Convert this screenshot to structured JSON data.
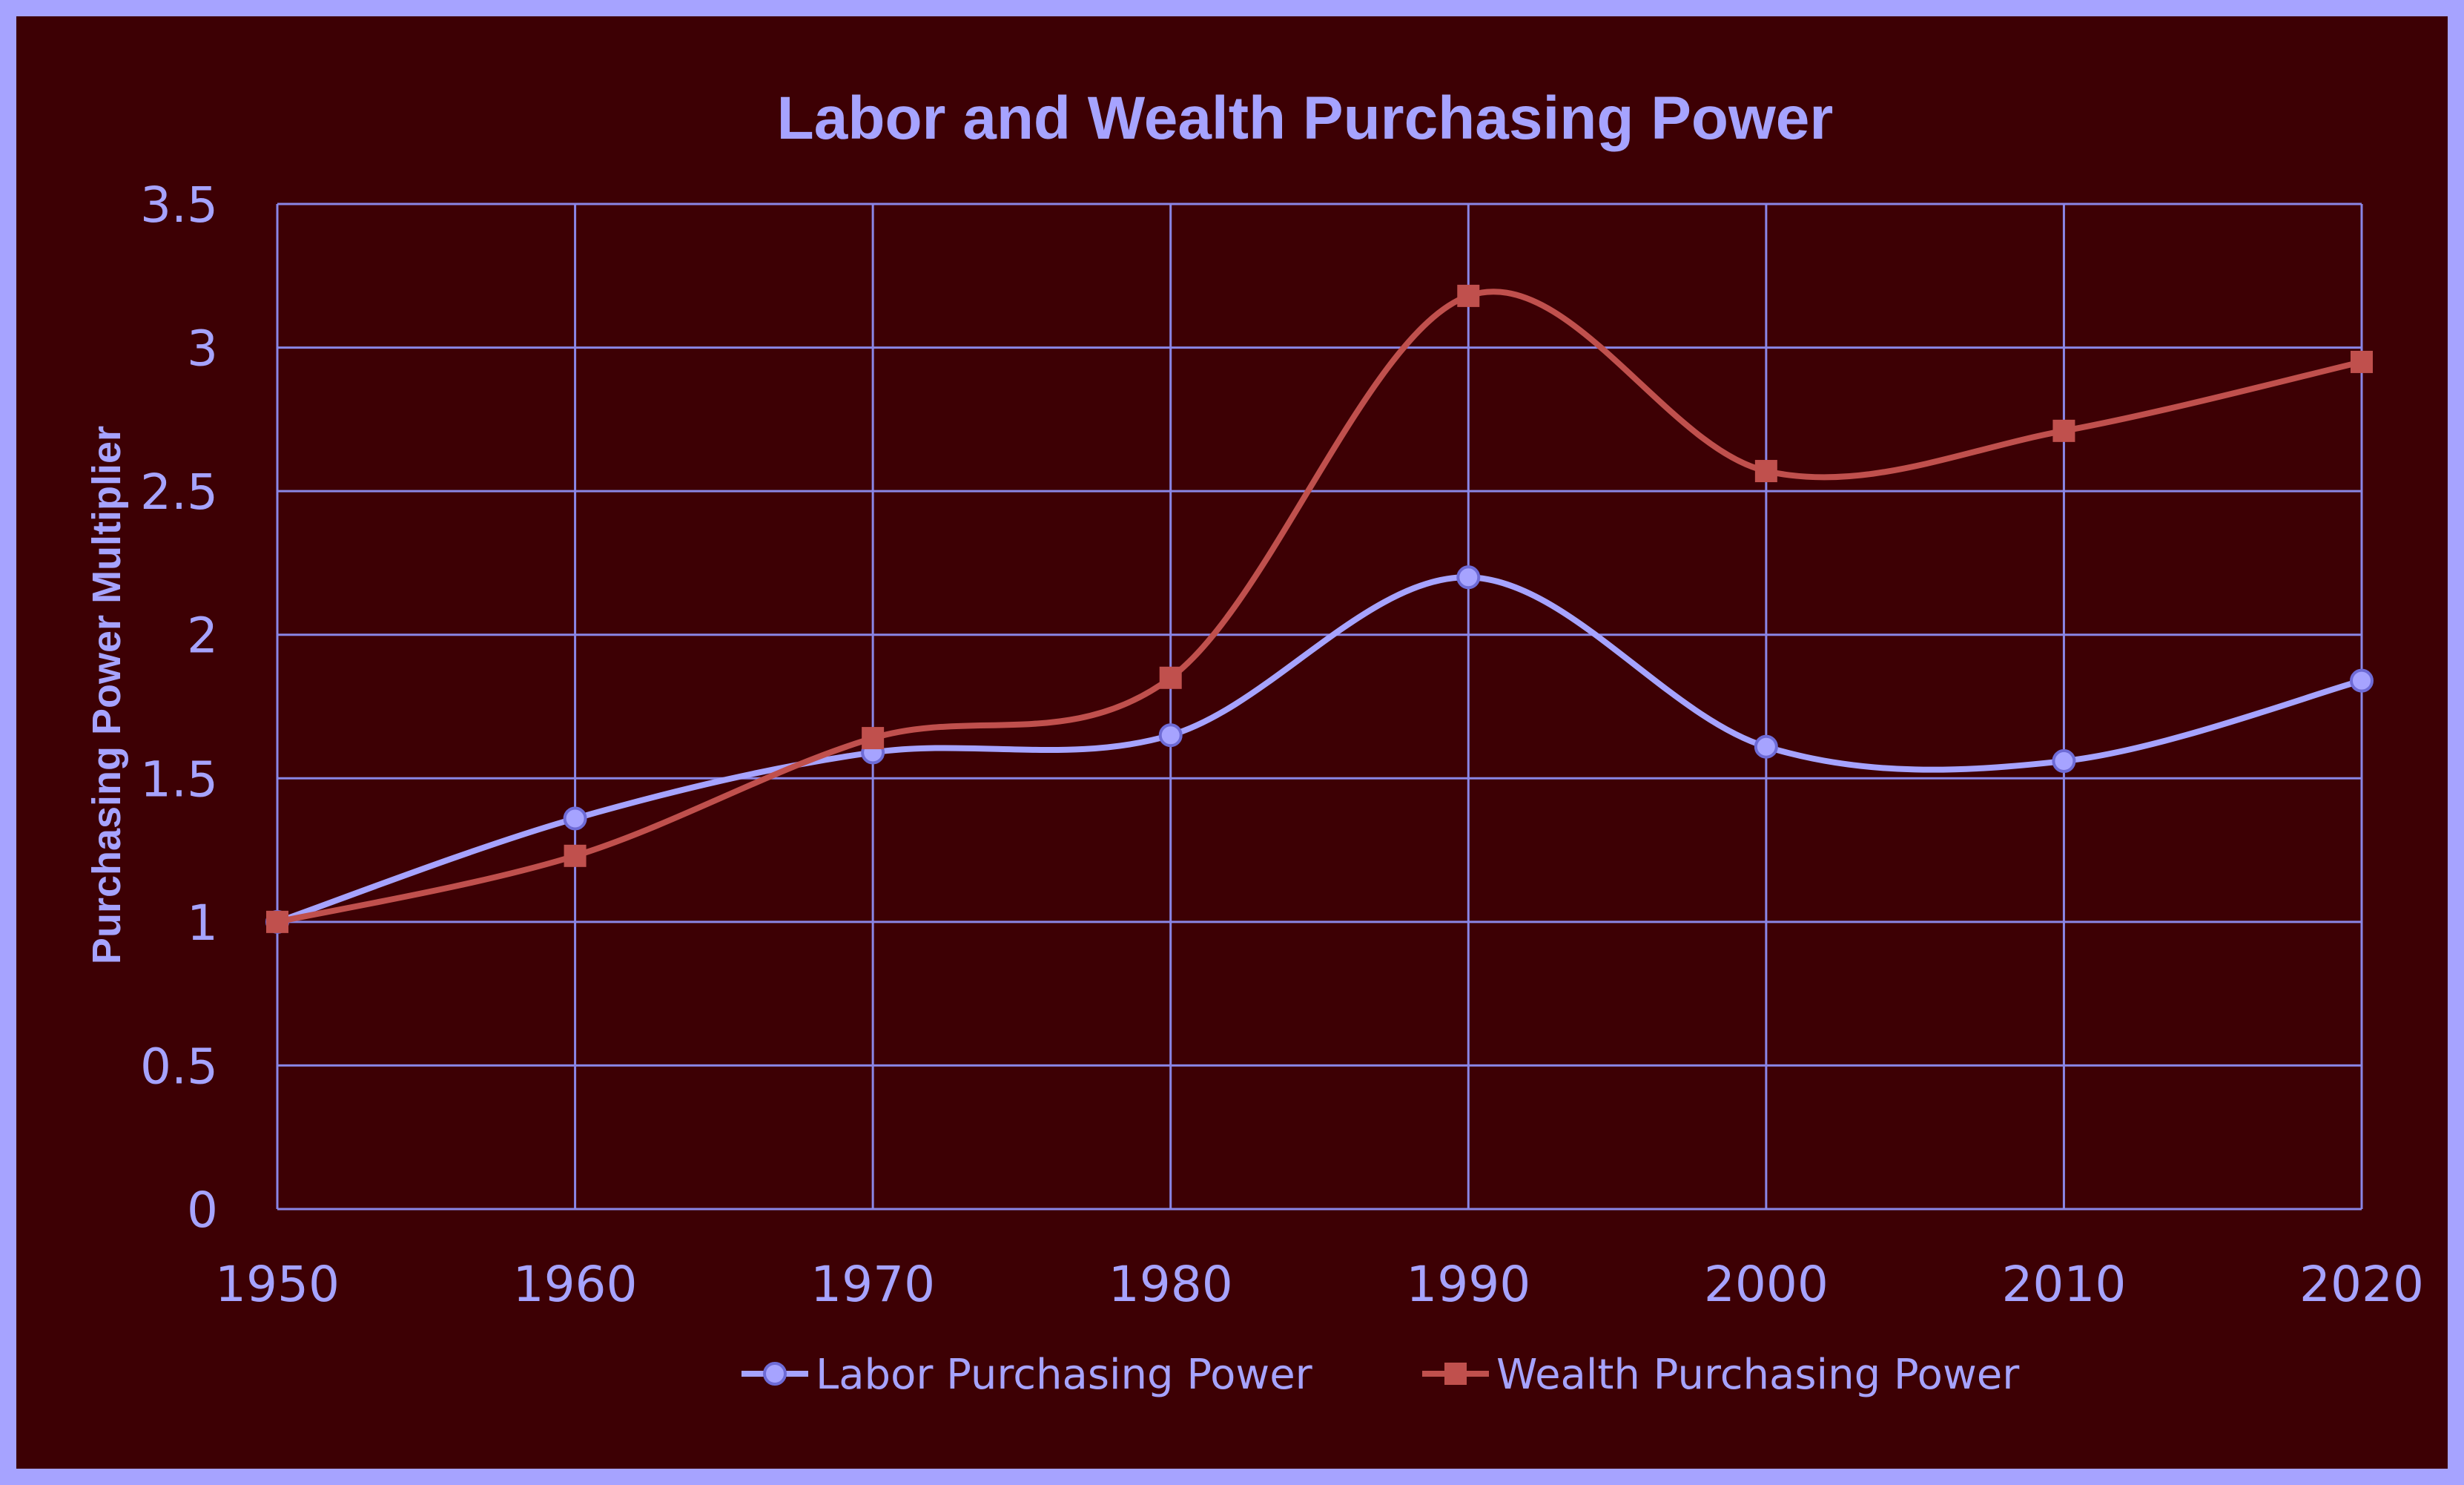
{
  "chart_data": {
    "type": "line",
    "title": "Labor and Wealth Purchasing Power",
    "xlabel": "",
    "ylabel": "Purchasing Power Multiplier",
    "x": [
      1950,
      1960,
      1970,
      1980,
      1990,
      2000,
      2010,
      2020
    ],
    "x_tick_labels": [
      "1950",
      "1960",
      "1970",
      "1980",
      "1990",
      "2000",
      "2010",
      "2020"
    ],
    "y_tick_labels": [
      "0",
      "0.5",
      "1",
      "1.5",
      "2",
      "2.5",
      "3",
      "3.5"
    ],
    "xlim": [
      1950,
      2020
    ],
    "ylim": [
      0,
      3.5
    ],
    "grid": true,
    "smooth": true,
    "legend_position": "bottom",
    "series": [
      {
        "name": "Labor Purchasing Power",
        "color": "#a6a3ff",
        "marker": "circle",
        "values": [
          1.0,
          1.36,
          1.59,
          1.65,
          2.2,
          1.61,
          1.56,
          1.84
        ]
      },
      {
        "name": "Wealth Purchasing Power",
        "color": "#c0504d",
        "marker": "square",
        "values": [
          1.0,
          1.23,
          1.64,
          1.85,
          3.18,
          2.57,
          2.71,
          2.95
        ]
      }
    ],
    "colors": {
      "background": "#3d0004",
      "frame": "#a6a3ff",
      "grid": "#8a86e6",
      "text": "#a6a3ff"
    }
  }
}
